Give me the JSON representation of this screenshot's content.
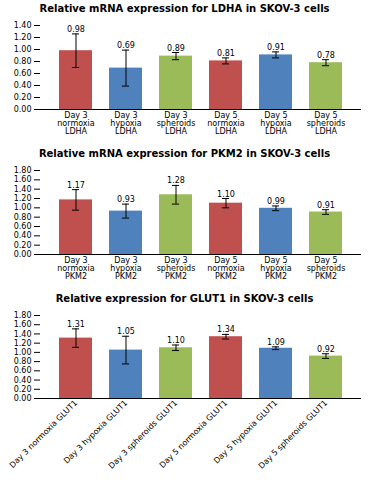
{
  "chart_data": [
    {
      "type": "bar",
      "title": "Relative mRNA expression for LDHA in SKOV-3 cells",
      "categories": [
        "Day 3\nnormoxia\nLDHA",
        "Day 3\nhypoxia\nLDHA",
        "Day 3\nspheroids\nLDHA",
        "Day 5\nnormoxia\nLDHA",
        "Day 5\nhypoxia\nLDHA",
        "Day 5\nspheroids\nLDHA"
      ],
      "values": [
        0.98,
        0.69,
        0.89,
        0.81,
        0.91,
        0.78
      ],
      "value_labels": [
        "0.98",
        "0.69",
        "0.89",
        "0.81",
        "0.91",
        "0.78"
      ],
      "errors": [
        0.28,
        0.3,
        0.06,
        0.05,
        0.05,
        0.05
      ],
      "colors": [
        "#C0504D",
        "#4F81BD",
        "#9BBB59",
        "#C0504D",
        "#4F81BD",
        "#9BBB59"
      ],
      "ylim": [
        0.0,
        1.4
      ],
      "yticks": [
        {
          "value": 0,
          "label": "0.00"
        },
        {
          "value": 0.2,
          "label": "0.20"
        },
        {
          "value": 0.4,
          "label": "0.40"
        },
        {
          "value": 0.6,
          "label": "0.60"
        },
        {
          "value": 0.8,
          "label": "0.80"
        },
        {
          "value": 1.0,
          "label": "1.00"
        },
        {
          "value": 1.2,
          "label": "1.20"
        },
        {
          "value": 1.4,
          "label": "1.40"
        }
      ],
      "data_labels": true,
      "grid": false
    },
    {
      "type": "bar",
      "title": "Relative mRNA expression for PKM2 in SKOV-3 cells",
      "categories": [
        "Day 3\nnormoxia\nPKM2",
        "Day 3\nhypoxia\nPKM2",
        "Day 3\nspheroids\nPKM2",
        "Day 5\nnormoxia\nPKM2",
        "Day 5\nhypoxia\nPKM2",
        "Day 5\nspheroids\nPKM2"
      ],
      "values": [
        1.17,
        0.93,
        1.28,
        1.1,
        0.99,
        0.91
      ],
      "value_labels": [
        "1.17",
        "0.93",
        "1.28",
        "1.10",
        "0.99",
        "0.91"
      ],
      "errors": [
        0.22,
        0.15,
        0.2,
        0.1,
        0.05,
        0.05
      ],
      "colors": [
        "#C0504D",
        "#4F81BD",
        "#9BBB59",
        "#C0504D",
        "#4F81BD",
        "#9BBB59"
      ],
      "ylim": [
        0.0,
        1.8
      ],
      "yticks": [
        {
          "value": 0,
          "label": "0.00"
        },
        {
          "value": 0.2,
          "label": "0.20"
        },
        {
          "value": 0.4,
          "label": "0.40"
        },
        {
          "value": 0.6,
          "label": "0.60"
        },
        {
          "value": 0.8,
          "label": "0.80"
        },
        {
          "value": 1.0,
          "label": "1.00"
        },
        {
          "value": 1.2,
          "label": "1.20"
        },
        {
          "value": 1.4,
          "label": "1.40"
        },
        {
          "value": 1.6,
          "label": "1.60"
        },
        {
          "value": 1.8,
          "label": "1.80"
        }
      ],
      "data_labels": true,
      "grid": false
    },
    {
      "type": "bar",
      "title": "Relative expression for GLUT1 in SKOV-3 cells",
      "categories": [
        "Day 3 normoxia GLUT1",
        "Day 3 hypoxia GLUT1",
        "Day 3 spheroids GLUT1",
        "Day 5 normoxia GLUT1",
        "Day 5 hypoxia GLUT1",
        "Day 5 spheroids GLUT1"
      ],
      "values": [
        1.31,
        1.05,
        1.1,
        1.34,
        1.09,
        0.92
      ],
      "value_labels": [
        "1.31",
        "1.05",
        "1.10",
        "1.34",
        "1.09",
        "0.92"
      ],
      "errors": [
        0.2,
        0.3,
        0.06,
        0.05,
        0.03,
        0.05
      ],
      "colors": [
        "#C0504D",
        "#4F81BD",
        "#9BBB59",
        "#C0504D",
        "#4F81BD",
        "#9BBB59"
      ],
      "ylim": [
        0.0,
        1.8
      ],
      "yticks": [
        {
          "value": 0,
          "label": "0.00"
        },
        {
          "value": 0.2,
          "label": "0.20"
        },
        {
          "value": 0.4,
          "label": "0.40"
        },
        {
          "value": 0.6,
          "label": "0.60"
        },
        {
          "value": 0.8,
          "label": "0.80"
        },
        {
          "value": 1.0,
          "label": "1.00"
        },
        {
          "value": 1.2,
          "label": "1.20"
        },
        {
          "value": 1.4,
          "label": "1.40"
        },
        {
          "value": 1.6,
          "label": "1.60"
        },
        {
          "value": 1.8,
          "label": "1.80"
        }
      ],
      "data_labels": true,
      "grid": false
    }
  ]
}
